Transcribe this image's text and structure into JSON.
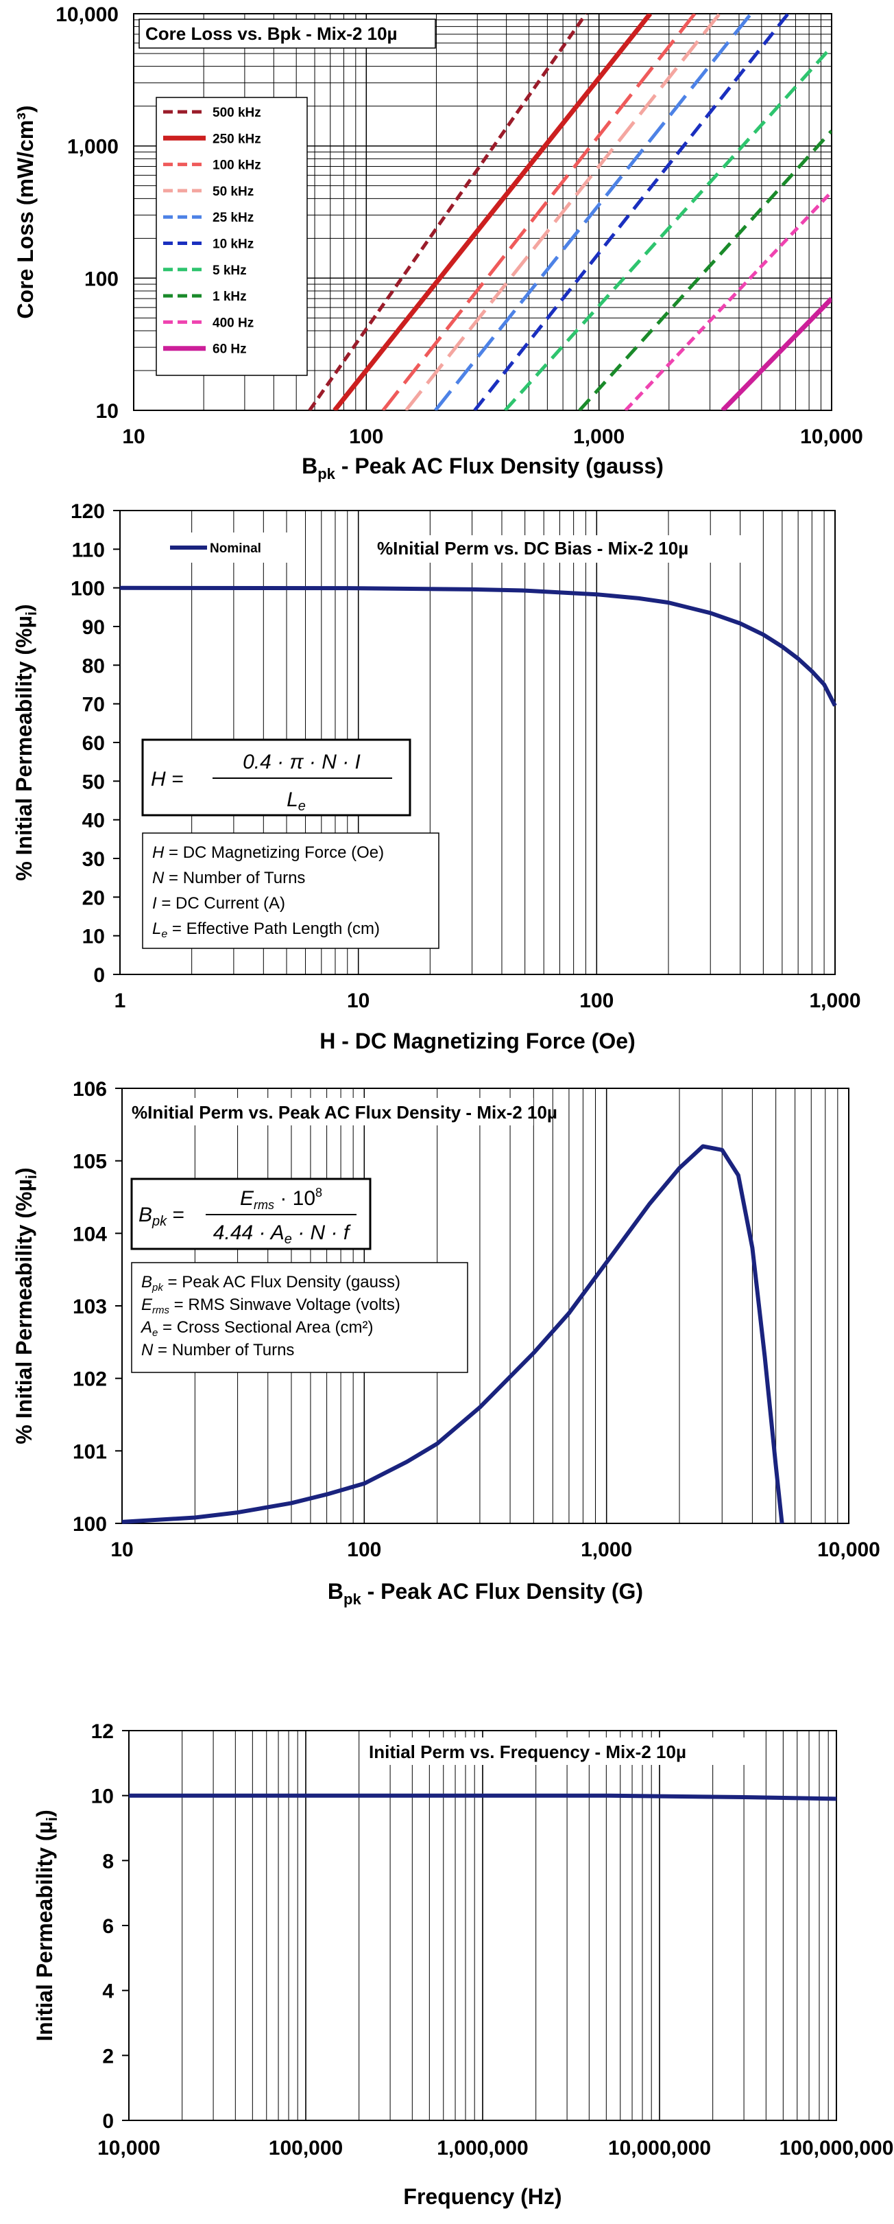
{
  "chart_data": [
    {
      "type": "line",
      "title": "Core Loss vs. Bpk - Mix-2  10µ",
      "xlabel_main": "B",
      "xlabel_sub": "pk",
      "xlabel_rest": " - Peak AC Flux Density (gauss)",
      "ylabel": "Core Loss (mW/cm³)",
      "xscale": "log",
      "yscale": "log",
      "xlim": [
        10,
        10000
      ],
      "ylim": [
        10,
        10000
      ],
      "xticks": [
        "10",
        "100",
        "1,000",
        "10,000"
      ],
      "yticks": [
        "10",
        "100",
        "1,000",
        "10,000"
      ],
      "grid": true,
      "legend": "top-left",
      "series": [
        {
          "name": "500 kHz",
          "color": "#9b1c2a",
          "dash": "short",
          "x": [
            57,
            880
          ],
          "y": [
            10,
            10000
          ]
        },
        {
          "name": "250 kHz",
          "color": "#cc1f1f",
          "dash": "solid",
          "x": [
            73,
            1660
          ],
          "y": [
            10,
            10000
          ]
        },
        {
          "name": "100 kHz",
          "color": "#ef5a5a",
          "dash": "long",
          "x": [
            118,
            2580
          ],
          "y": [
            10,
            10000
          ]
        },
        {
          "name": "50 kHz",
          "color": "#f4a6a0",
          "dash": "long",
          "x": [
            148,
            3300
          ],
          "y": [
            10,
            10000
          ]
        },
        {
          "name": "25 kHz",
          "color": "#4d82e6",
          "dash": "long",
          "x": [
            198,
            4500
          ],
          "y": [
            10,
            10000
          ]
        },
        {
          "name": "10 kHz",
          "color": "#1a2fbf",
          "dash": "medium",
          "x": [
            292,
            6500
          ],
          "y": [
            10,
            10000
          ]
        },
        {
          "name": "5 kHz",
          "color": "#2ec46e",
          "dash": "medium",
          "x": [
            395,
            9800
          ],
          "y": [
            10,
            5400
          ]
        },
        {
          "name": "1 kHz",
          "color": "#1a8a2a",
          "dash": "medium",
          "x": [
            825,
            10000
          ],
          "y": [
            10,
            1300
          ]
        },
        {
          "name": "400 Hz",
          "color": "#ef43b0",
          "dash": "short",
          "x": [
            1300,
            10000
          ],
          "y": [
            10,
            450
          ]
        },
        {
          "name": "60 Hz",
          "color": "#cc1f99",
          "dash": "solid",
          "x": [
            3400,
            10000
          ],
          "y": [
            10,
            70
          ]
        }
      ]
    },
    {
      "type": "line",
      "title": "%Initial Perm vs. DC Bias - Mix-2  10µ",
      "xlabel": "H - DC Magnetizing Force (Oe)",
      "ylabel_main": "% Initial Permeability (%µ",
      "ylabel_sub": "i",
      "ylabel_end": ")",
      "xscale": "log",
      "xlim": [
        1,
        1000
      ],
      "ylim": [
        0,
        120
      ],
      "xticks": [
        "1",
        "10",
        "100",
        "1,000"
      ],
      "yticks": [
        "0",
        "10",
        "20",
        "30",
        "40",
        "50",
        "60",
        "70",
        "80",
        "90",
        "100",
        "110",
        "120"
      ],
      "legend": "top-left",
      "series": [
        {
          "name": "Nominal",
          "color": "#1a237e",
          "x": [
            1,
            10,
            30,
            50,
            100,
            150,
            200,
            300,
            400,
            500,
            600,
            700,
            800,
            900,
            1000
          ],
          "y": [
            100,
            99.9,
            99.6,
            99.3,
            98.3,
            97.3,
            96.2,
            93.5,
            90.8,
            87.9,
            84.8,
            81.7,
            78.4,
            75.0,
            69.5
          ]
        }
      ],
      "formula": {
        "lhs": "H =",
        "num": "0.4 · π · N · I",
        "den_main": "L",
        "den_sub": "e"
      },
      "legend_box": [
        {
          "sym": "H",
          "sub": "",
          "text": " = DC Magnetizing Force (Oe)"
        },
        {
          "sym": "N",
          "sub": "",
          "text": " = Number of Turns"
        },
        {
          "sym": "I",
          "sub": "",
          "text": " = DC Current (A)"
        },
        {
          "sym": "L",
          "sub": "e",
          "text": " = Effective Path Length (cm)"
        }
      ]
    },
    {
      "type": "line",
      "title": "%Initial Perm vs. Peak AC Flux Density - Mix-2  10µ",
      "xlabel_main": "B",
      "xlabel_sub": "pk",
      "xlabel_rest": " - Peak AC Flux Density (G)",
      "ylabel_main": "% Initial Permeability (%µ",
      "ylabel_sub": "i",
      "ylabel_end": ")",
      "xscale": "log",
      "xlim": [
        10,
        10000
      ],
      "ylim": [
        100,
        106
      ],
      "xticks": [
        "10",
        "100",
        "1,000",
        "10,000"
      ],
      "yticks": [
        "100",
        "101",
        "102",
        "103",
        "104",
        "105",
        "106"
      ],
      "series": [
        {
          "name": "",
          "color": "#1a237e",
          "x": [
            10,
            20,
            30,
            50,
            70,
            100,
            150,
            200,
            300,
            500,
            700,
            1000,
            1500,
            2000,
            2500,
            3000,
            3500,
            4000,
            4500,
            5000,
            5300
          ],
          "y": [
            100.02,
            100.08,
            100.15,
            100.28,
            100.4,
            100.55,
            100.85,
            101.1,
            101.6,
            102.35,
            102.9,
            103.6,
            104.4,
            104.9,
            105.2,
            105.15,
            104.8,
            103.8,
            102.3,
            100.8,
            100.0
          ]
        }
      ],
      "formula": {
        "lhs_main": "B",
        "lhs_sub": "pk",
        "num_main": "E",
        "num_sub": "rms",
        "num_rest": " · 10",
        "num_sup": "8",
        "den_main": "4.44 · A",
        "den_sub": "e",
        "den_rest": " · N · f"
      },
      "legend_box": [
        {
          "sym": "B",
          "sub": "pk",
          "text": " = Peak AC Flux Density (gauss)"
        },
        {
          "sym": "E",
          "sub": "rms",
          "text": " = RMS Sinwave Voltage (volts)"
        },
        {
          "sym": "A",
          "sub": "e",
          "text": " = Cross Sectional Area (cm²)"
        },
        {
          "sym": "N",
          "sub": "",
          "text": " = Number of Turns"
        }
      ]
    },
    {
      "type": "line",
      "title": "Initial Perm vs. Frequency - Mix-2  10µ",
      "xlabel": "Frequency (Hz)",
      "ylabel_main": "Initial Permeability (µ",
      "ylabel_sub": "i",
      "ylabel_end": ")",
      "xscale": "log",
      "xlim": [
        10000,
        100000000
      ],
      "ylim": [
        0,
        12
      ],
      "xticks": [
        "10,000",
        "100,000",
        "1,000,000",
        "10,000,000",
        "100,000,000"
      ],
      "yticks": [
        "0",
        "2",
        "4",
        "6",
        "8",
        "10",
        "12"
      ],
      "series": [
        {
          "name": "",
          "color": "#1a237e",
          "x": [
            10000,
            100000,
            1000000,
            5000000,
            10000000,
            30000000,
            100000000
          ],
          "y": [
            10.0,
            10.0,
            10.0,
            10.0,
            9.98,
            9.95,
            9.9
          ]
        }
      ]
    }
  ]
}
